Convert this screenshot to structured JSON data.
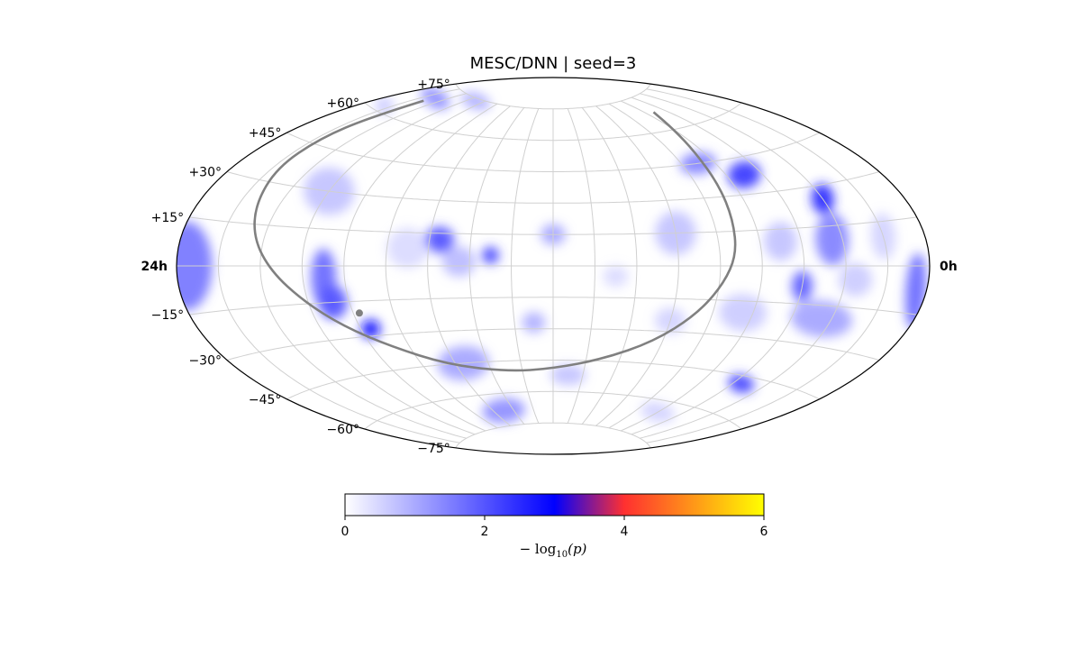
{
  "chart_data": {
    "type": "heatmap",
    "projection": "aitoff",
    "title": "MESC/DNN | seed=3",
    "grid": true,
    "dec_tick_labels": [
      "+75°",
      "+60°",
      "+45°",
      "+30°",
      "+15°",
      "−15°",
      "−30°",
      "−45°",
      "−60°",
      "−75°"
    ],
    "dec_tick_values": [
      75,
      60,
      45,
      30,
      15,
      -15,
      -30,
      -45,
      -60,
      -75
    ],
    "ra_left_label": "24h",
    "ra_right_label": "0h",
    "lon_grid_step_deg": 20,
    "lat_grid_step_deg": 15,
    "colorbar": {
      "label_prefix": "− log",
      "label_sub": "10",
      "label_suffix": "(p)",
      "range": [
        0,
        6
      ],
      "ticks": [
        "0",
        "2",
        "4",
        "6"
      ],
      "stops": [
        {
          "value": 0,
          "color": "#ffffff"
        },
        {
          "value": 3,
          "color": "#0000ff"
        },
        {
          "value": 4,
          "color": "#ff3030"
        },
        {
          "value": 6,
          "color": "#ffff00"
        }
      ]
    },
    "blobs": [
      {
        "lon": -150,
        "lat": 70,
        "value": 1.5,
        "sx": 28,
        "sy": 7
      },
      {
        "lon": -110,
        "lat": 74,
        "value": 1.2,
        "sx": 25,
        "sy": 5
      },
      {
        "lon": -165,
        "lat": 62,
        "value": 0.9,
        "sx": 14,
        "sy": 6
      },
      {
        "lon": -120,
        "lat": 30,
        "value": 1.0,
        "sx": 14,
        "sy": 10
      },
      {
        "lon": -55,
        "lat": 12,
        "value": 2.0,
        "sx": 7,
        "sy": 6
      },
      {
        "lon": -45,
        "lat": 2,
        "value": 1.1,
        "sx": 8,
        "sy": 7
      },
      {
        "lon": -30,
        "lat": 5,
        "value": 2.2,
        "sx": 4,
        "sy": 4
      },
      {
        "lon": -70,
        "lat": 8,
        "value": 0.7,
        "sx": 10,
        "sy": 9
      },
      {
        "lon": 0,
        "lat": 15,
        "value": 1.3,
        "sx": 6,
        "sy": 5
      },
      {
        "lon": -110,
        "lat": -5,
        "value": 1.8,
        "sx": 6,
        "sy": 12
      },
      {
        "lon": -108,
        "lat": -15,
        "value": 2.0,
        "sx": 7,
        "sy": 7
      },
      {
        "lon": -95,
        "lat": -27,
        "value": 2.8,
        "sx": 5,
        "sy": 4
      },
      {
        "lon": -175,
        "lat": 0,
        "value": 1.7,
        "sx": 12,
        "sy": 14
      },
      {
        "lon": -10,
        "lat": -27,
        "value": 1.2,
        "sx": 6,
        "sy": 5
      },
      {
        "lon": -55,
        "lat": -45,
        "value": 1.3,
        "sx": 16,
        "sy": 8
      },
      {
        "lon": -50,
        "lat": -68,
        "value": 1.5,
        "sx": 22,
        "sy": 6
      },
      {
        "lon": 10,
        "lat": -52,
        "value": 1.0,
        "sx": 12,
        "sy": 5
      },
      {
        "lon": 90,
        "lat": 45,
        "value": 1.6,
        "sx": 12,
        "sy": 5
      },
      {
        "lon": 110,
        "lat": 38,
        "value": 2.3,
        "sx": 10,
        "sy": 6
      },
      {
        "lon": 140,
        "lat": 25,
        "value": 2.5,
        "sx": 6,
        "sy": 6
      },
      {
        "lon": 135,
        "lat": 10,
        "value": 1.6,
        "sx": 8,
        "sy": 10
      },
      {
        "lon": 60,
        "lat": 15,
        "value": 1.0,
        "sx": 10,
        "sy": 10
      },
      {
        "lon": 110,
        "lat": 10,
        "value": 1.0,
        "sx": 8,
        "sy": 8
      },
      {
        "lon": 120,
        "lat": -8,
        "value": 1.9,
        "sx": 5,
        "sy": 6
      },
      {
        "lon": 135,
        "lat": -20,
        "value": 1.3,
        "sx": 16,
        "sy": 7
      },
      {
        "lon": 95,
        "lat": -20,
        "value": 0.9,
        "sx": 12,
        "sy": 8
      },
      {
        "lon": 175,
        "lat": -8,
        "value": 1.8,
        "sx": 6,
        "sy": 12
      },
      {
        "lon": 125,
        "lat": -48,
        "value": 2.2,
        "sx": 10,
        "sy": 4
      },
      {
        "lon": 100,
        "lat": -65,
        "value": 0.8,
        "sx": 20,
        "sy": 5
      },
      {
        "lon": 160,
        "lat": 10,
        "value": 0.8,
        "sx": 6,
        "sy": 8
      },
      {
        "lon": 145,
        "lat": -5,
        "value": 0.9,
        "sx": 8,
        "sy": 6
      },
      {
        "lon": 60,
        "lat": -25,
        "value": 0.8,
        "sx": 8,
        "sy": 6
      },
      {
        "lon": 30,
        "lat": -5,
        "value": 0.7,
        "sx": 6,
        "sy": 5
      }
    ],
    "galactic_plane": [
      [
        -152,
        68
      ],
      [
        -155,
        58
      ],
      [
        -158,
        47
      ],
      [
        -158,
        35
      ],
      [
        -152,
        22
      ],
      [
        -145,
        10
      ],
      [
        -135,
        -2
      ],
      [
        -122,
        -14
      ],
      [
        -108,
        -25
      ],
      [
        -90,
        -35
      ],
      [
        -65,
        -45
      ],
      [
        -30,
        -50
      ],
      [
        0,
        -49
      ],
      [
        30,
        -44
      ],
      [
        55,
        -35
      ],
      [
        72,
        -22
      ],
      [
        82,
        -8
      ],
      [
        88,
        5
      ],
      [
        90,
        20
      ],
      [
        92,
        35
      ],
      [
        95,
        50
      ],
      [
        100,
        60
      ],
      [
        108,
        68
      ]
    ],
    "marker": {
      "lon": -97,
      "lat": -20
    }
  }
}
